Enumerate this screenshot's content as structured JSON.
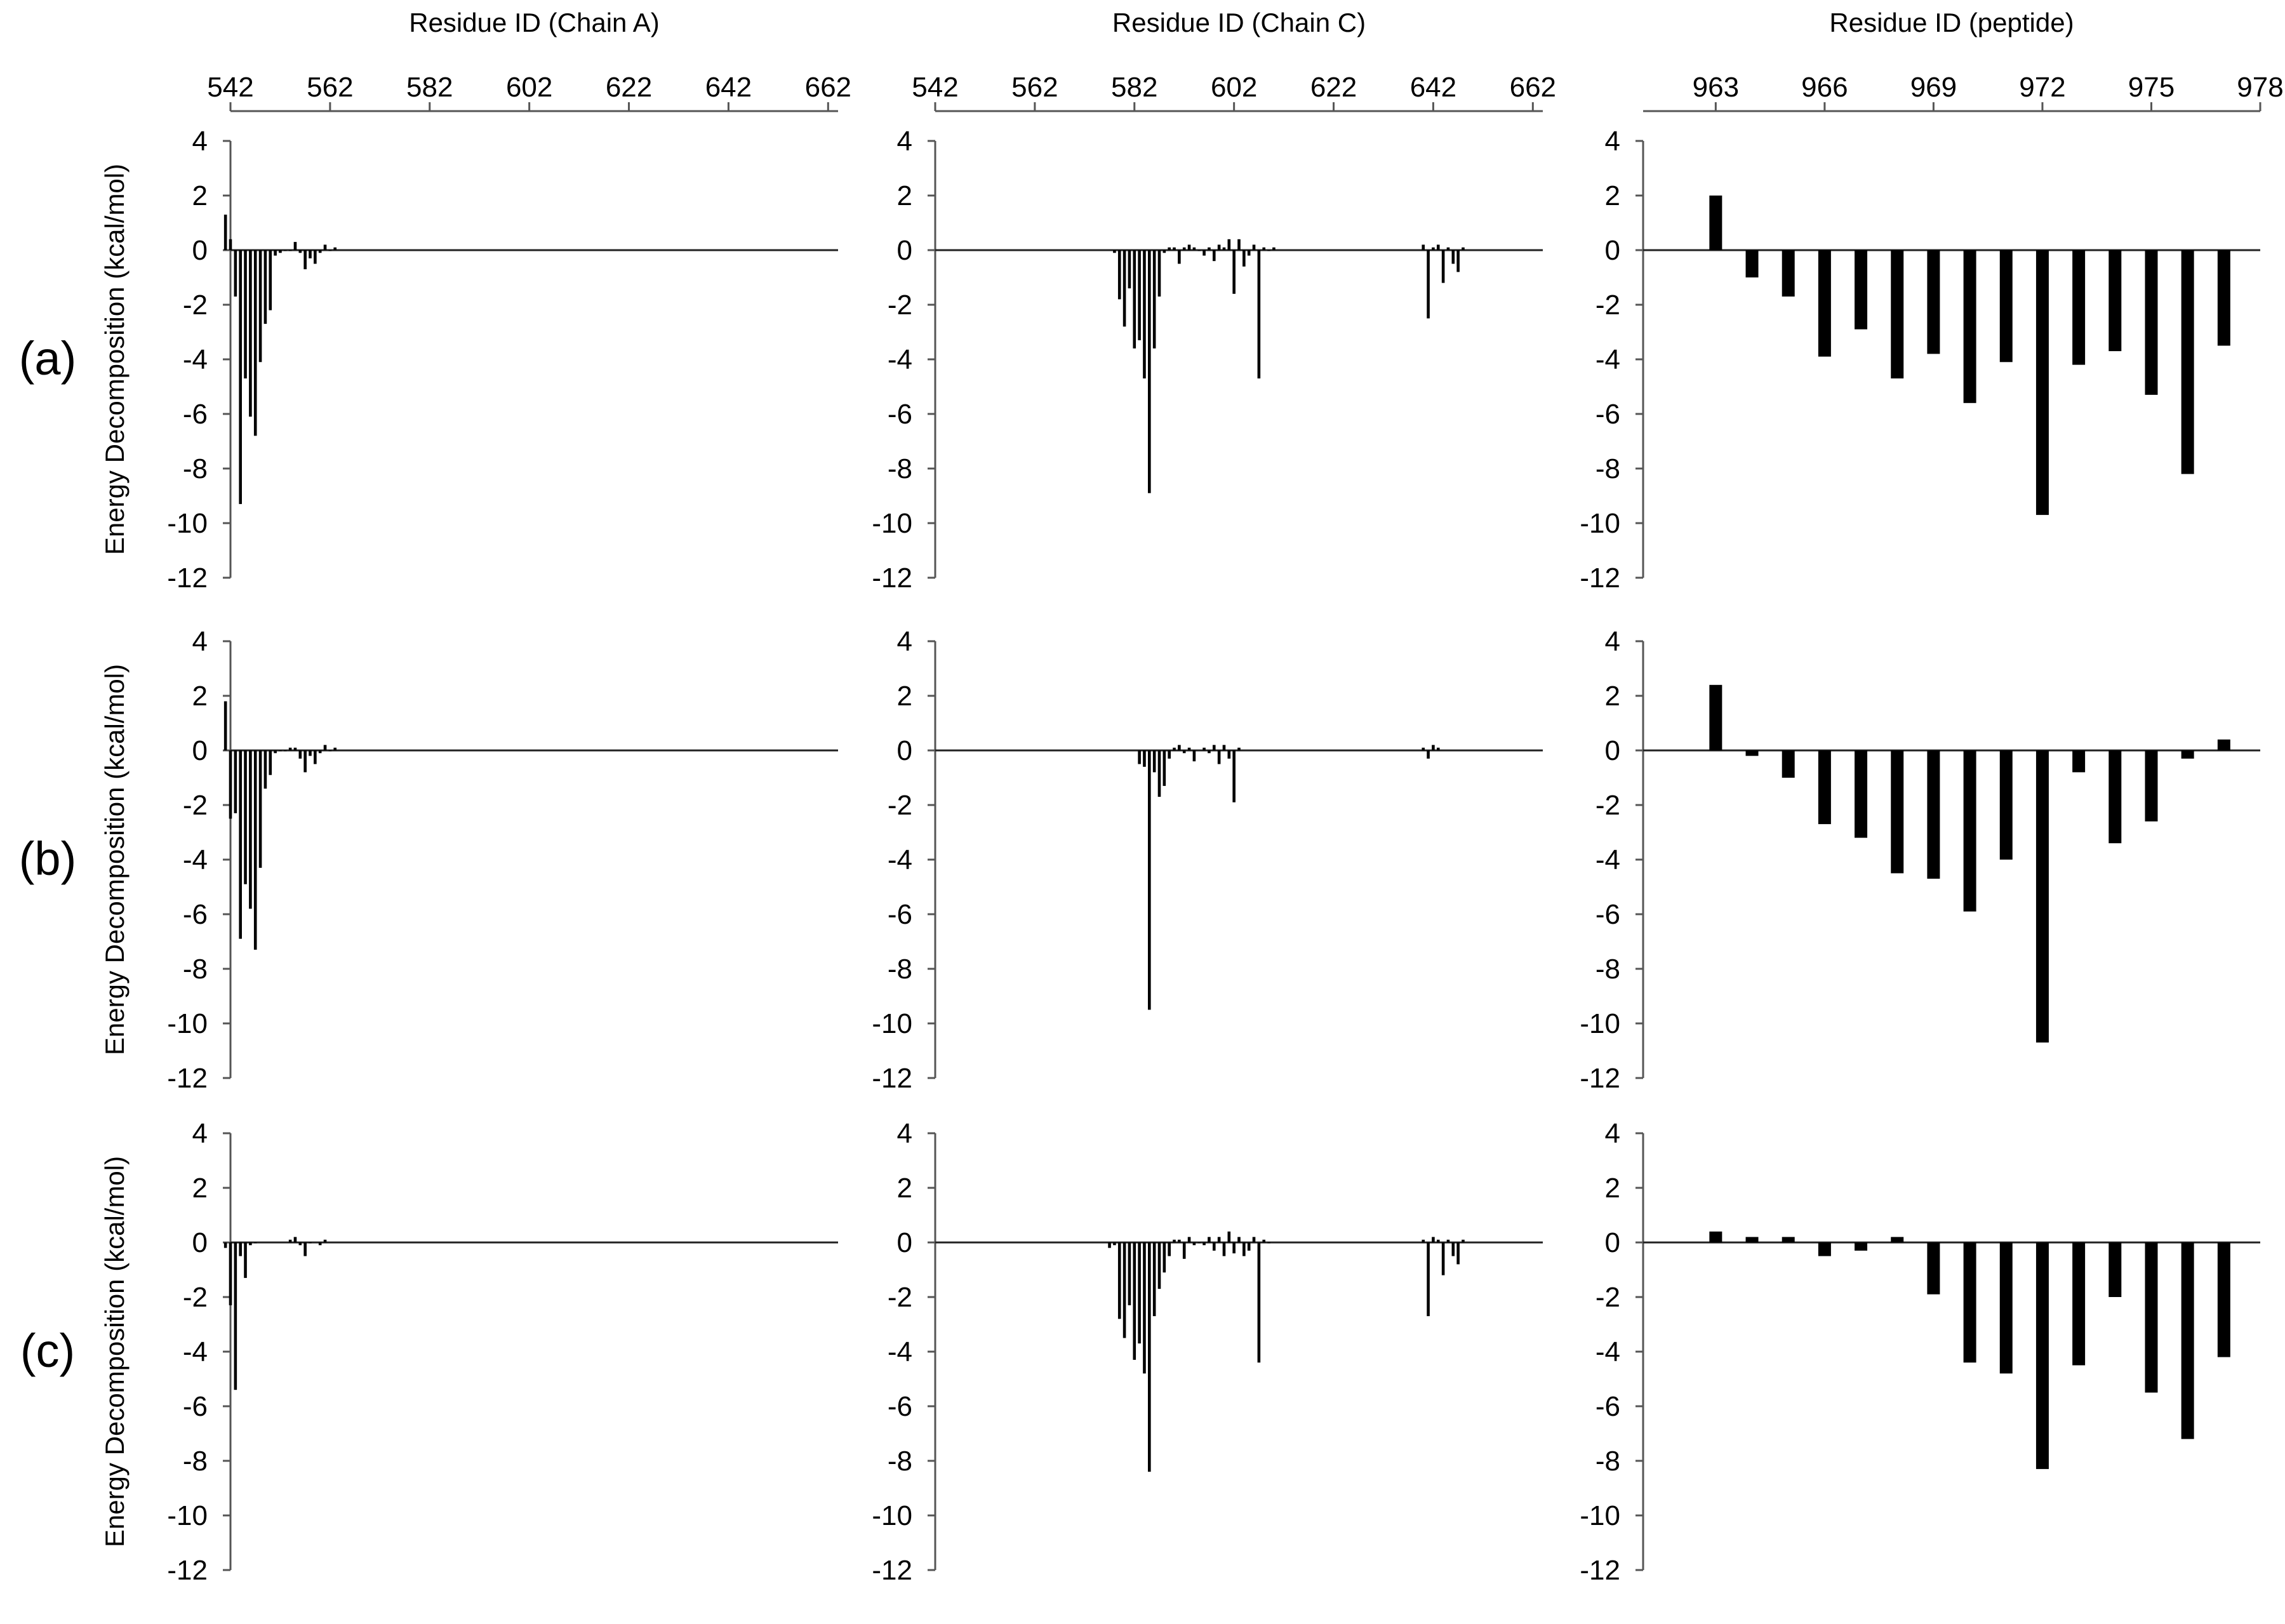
{
  "figure": {
    "rows": [
      "(a)",
      "(b)",
      "(c)"
    ],
    "ylabel": "Energy Decomposition (kcal/mol)",
    "columns": [
      {
        "xlabel": "Residue ID (Chain A)",
        "xticks": [
          542,
          562,
          582,
          602,
          622,
          642,
          662
        ]
      },
      {
        "xlabel": "Residue ID (Chain C)",
        "xticks": [
          542,
          562,
          582,
          602,
          622,
          642,
          662
        ]
      },
      {
        "xlabel": "Residue ID (peptide)",
        "xticks": [
          963,
          966,
          969,
          972,
          975,
          978
        ]
      }
    ],
    "yticks": [
      4,
      2,
      0,
      -2,
      -4,
      -6,
      -8,
      -10,
      -12
    ]
  },
  "chart_data": [
    {
      "type": "bar",
      "panel": "(a)",
      "xlabel": "Residue ID (Chain A)",
      "ylabel": "Energy Decomposition (kcal/mol)",
      "xlim": [
        542,
        664
      ],
      "ylim": [
        -12,
        4
      ],
      "x": [
        541,
        542,
        543,
        544,
        545,
        546,
        547,
        548,
        549,
        550,
        551,
        552,
        553,
        554,
        555,
        556,
        557,
        558,
        559,
        560,
        561,
        562,
        563
      ],
      "values": [
        1.3,
        0.4,
        -1.7,
        -9.3,
        -4.7,
        -6.1,
        -6.8,
        -4.1,
        -2.7,
        -2.2,
        -0.2,
        -0.1,
        0.0,
        0.0,
        0.3,
        -0.1,
        -0.7,
        -0.3,
        -0.5,
        -0.1,
        0.2,
        0.0,
        0.1
      ]
    },
    {
      "type": "bar",
      "panel": "(a)",
      "xlabel": "Residue ID (Chain C)",
      "ylabel": "Energy Decomposition (kcal/mol)",
      "xlim": [
        542,
        664
      ],
      "ylim": [
        -12,
        4
      ],
      "x": [
        578,
        579,
        580,
        581,
        582,
        583,
        584,
        585,
        586,
        587,
        588,
        589,
        590,
        591,
        592,
        593,
        594,
        595,
        596,
        597,
        598,
        599,
        600,
        601,
        602,
        603,
        604,
        605,
        606,
        607,
        608,
        609,
        610,
        640,
        641,
        642,
        643,
        644,
        645,
        646,
        647,
        648
      ],
      "values": [
        -0.1,
        -1.8,
        -2.8,
        -1.4,
        -3.6,
        -3.3,
        -4.7,
        -8.9,
        -3.6,
        -1.7,
        -0.1,
        0.1,
        0.1,
        -0.5,
        0.1,
        0.2,
        0.1,
        0.0,
        -0.2,
        0.1,
        -0.4,
        0.2,
        0.1,
        0.4,
        -1.6,
        0.4,
        -0.6,
        -0.2,
        0.2,
        -4.7,
        0.1,
        0.0,
        0.1,
        0.2,
        -2.5,
        0.1,
        0.2,
        -1.2,
        0.1,
        -0.5,
        -0.8,
        0.1
      ]
    },
    {
      "type": "bar",
      "panel": "(a)",
      "xlabel": "Residue ID (peptide)",
      "ylabel": "Energy Decomposition (kcal/mol)",
      "xlim": [
        961,
        978
      ],
      "ylim": [
        -12,
        4
      ],
      "x": [
        963,
        964,
        965,
        966,
        967,
        968,
        969,
        970,
        971,
        972,
        973,
        974,
        975,
        976,
        977
      ],
      "values": [
        2.0,
        -1.0,
        -1.7,
        -3.9,
        -2.9,
        -4.7,
        -3.8,
        -5.6,
        -4.1,
        -9.7,
        -4.2,
        -3.7,
        -5.3,
        -8.2,
        -3.5
      ]
    },
    {
      "type": "bar",
      "panel": "(b)",
      "xlabel": "Residue ID (Chain A)",
      "ylabel": "Energy Decomposition (kcal/mol)",
      "xlim": [
        542,
        664
      ],
      "ylim": [
        -12,
        4
      ],
      "x": [
        541,
        542,
        543,
        544,
        545,
        546,
        547,
        548,
        549,
        550,
        551,
        552,
        553,
        554,
        555,
        556,
        557,
        558,
        559,
        560,
        561,
        562,
        563
      ],
      "values": [
        1.8,
        -2.5,
        -2.3,
        -6.9,
        -4.9,
        -5.8,
        -7.3,
        -4.3,
        -1.4,
        -0.9,
        -0.1,
        0.0,
        0.0,
        0.1,
        0.1,
        -0.3,
        -0.8,
        -0.2,
        -0.5,
        -0.1,
        0.2,
        0.0,
        0.1
      ]
    },
    {
      "type": "bar",
      "panel": "(b)",
      "xlabel": "Residue ID (Chain C)",
      "ylabel": "Energy Decomposition (kcal/mol)",
      "xlim": [
        542,
        664
      ],
      "ylim": [
        -12,
        4
      ],
      "x": [
        583,
        584,
        585,
        586,
        587,
        588,
        589,
        590,
        591,
        592,
        593,
        594,
        596,
        597,
        598,
        599,
        600,
        601,
        602,
        603,
        640,
        641,
        642,
        643
      ],
      "values": [
        -0.5,
        -0.6,
        -9.5,
        -0.8,
        -1.7,
        -1.3,
        -0.3,
        0.1,
        0.2,
        -0.1,
        0.1,
        -0.4,
        0.1,
        -0.1,
        0.2,
        -0.5,
        0.2,
        -0.3,
        -1.9,
        0.1,
        0.1,
        -0.3,
        0.2,
        0.1
      ]
    },
    {
      "type": "bar",
      "panel": "(b)",
      "xlabel": "Residue ID (peptide)",
      "ylabel": "Energy Decomposition (kcal/mol)",
      "xlim": [
        961,
        978
      ],
      "ylim": [
        -12,
        4
      ],
      "x": [
        963,
        964,
        965,
        966,
        967,
        968,
        969,
        970,
        971,
        972,
        973,
        974,
        975,
        976,
        977
      ],
      "values": [
        2.4,
        -0.2,
        -1.0,
        -2.7,
        -3.2,
        -4.5,
        -4.7,
        -5.9,
        -4.0,
        -10.7,
        -0.8,
        -3.4,
        -2.6,
        -0.3,
        0.4
      ]
    },
    {
      "type": "bar",
      "panel": "(c)",
      "xlabel": "Residue ID (Chain A)",
      "ylabel": "Energy Decomposition (kcal/mol)",
      "xlim": [
        542,
        664
      ],
      "ylim": [
        -12,
        4
      ],
      "x": [
        541,
        542,
        543,
        544,
        545,
        546,
        547,
        554,
        555,
        556,
        557,
        558,
        560,
        561
      ],
      "values": [
        -0.2,
        -2.3,
        -5.4,
        -0.5,
        -1.3,
        -0.1,
        0.0,
        0.1,
        0.2,
        -0.1,
        -0.5,
        0.0,
        -0.1,
        0.1
      ]
    },
    {
      "type": "bar",
      "panel": "(c)",
      "xlabel": "Residue ID (Chain C)",
      "ylabel": "Energy Decomposition (kcal/mol)",
      "xlim": [
        542,
        664
      ],
      "ylim": [
        -12,
        4
      ],
      "x": [
        577,
        578,
        579,
        580,
        581,
        582,
        583,
        584,
        585,
        586,
        587,
        588,
        589,
        590,
        591,
        592,
        593,
        594,
        595,
        596,
        597,
        598,
        599,
        600,
        601,
        602,
        603,
        604,
        605,
        606,
        607,
        608,
        609,
        640,
        641,
        642,
        643,
        644,
        645,
        646,
        647,
        648
      ],
      "values": [
        -0.2,
        -0.1,
        -2.8,
        -3.5,
        -2.3,
        -4.3,
        -3.7,
        -4.8,
        -8.4,
        -2.7,
        -1.7,
        -1.1,
        -0.5,
        0.1,
        0.1,
        -0.6,
        0.2,
        -0.1,
        0.0,
        -0.1,
        0.2,
        -0.3,
        0.2,
        -0.5,
        0.4,
        -0.4,
        0.2,
        -0.5,
        -0.3,
        0.2,
        -4.4,
        0.1,
        0.0,
        0.1,
        -2.7,
        0.2,
        0.1,
        -1.2,
        0.1,
        -0.5,
        -0.8,
        0.1
      ]
    },
    {
      "type": "bar",
      "panel": "(c)",
      "xlabel": "Residue ID (peptide)",
      "ylabel": "Energy Decomposition (kcal/mol)",
      "xlim": [
        961,
        978
      ],
      "ylim": [
        -12,
        4
      ],
      "x": [
        963,
        964,
        965,
        966,
        967,
        968,
        969,
        970,
        971,
        972,
        973,
        974,
        975,
        976,
        977
      ],
      "values": [
        0.4,
        0.2,
        0.2,
        -0.5,
        -0.3,
        0.2,
        -1.9,
        -4.4,
        -4.8,
        -8.3,
        -4.5,
        -2.0,
        -5.5,
        -7.2,
        -4.2
      ]
    }
  ]
}
